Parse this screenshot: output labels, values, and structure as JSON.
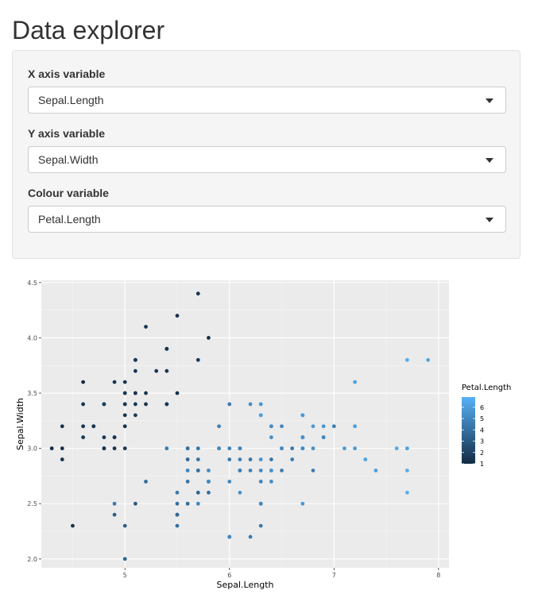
{
  "page": {
    "title": "Data explorer"
  },
  "controls": [
    {
      "label": "X axis variable",
      "value": "Sepal.Length"
    },
    {
      "label": "Y axis variable",
      "value": "Sepal.Width"
    },
    {
      "label": "Colour variable",
      "value": "Petal.Length"
    }
  ],
  "chart_data": {
    "type": "scatter",
    "title": "",
    "xlabel": "Sepal.Length",
    "ylabel": "Sepal.Width",
    "xlim": [
      4.2,
      8.1
    ],
    "ylim": [
      1.92,
      4.52
    ],
    "xticks": [
      5,
      6,
      7,
      8
    ],
    "xtick_labels": [
      "5",
      "6",
      "7",
      "8"
    ],
    "yticks": [
      2.0,
      2.5,
      3.0,
      3.5,
      4.0,
      4.5
    ],
    "ytick_labels": [
      "2.0",
      "2.5",
      "3.0",
      "3.5",
      "4.0",
      "4.5"
    ],
    "grid": true,
    "background": "#ebebeb",
    "legend": {
      "title": "Petal.Length",
      "placement": "right",
      "range": [
        1,
        6.9
      ],
      "ticks": [
        1,
        2,
        3,
        4,
        5,
        6
      ],
      "tick_labels": [
        "1",
        "2",
        "3",
        "4",
        "5",
        "6"
      ],
      "color_low": "#132B43",
      "color_high": "#56B1F7"
    },
    "points": [
      [
        5.1,
        3.5,
        1.4
      ],
      [
        4.9,
        3.0,
        1.4
      ],
      [
        4.7,
        3.2,
        1.3
      ],
      [
        4.6,
        3.1,
        1.5
      ],
      [
        5.0,
        3.6,
        1.4
      ],
      [
        5.4,
        3.9,
        1.7
      ],
      [
        4.6,
        3.4,
        1.4
      ],
      [
        5.0,
        3.4,
        1.5
      ],
      [
        4.4,
        2.9,
        1.4
      ],
      [
        4.9,
        3.1,
        1.5
      ],
      [
        5.4,
        3.7,
        1.5
      ],
      [
        4.8,
        3.4,
        1.6
      ],
      [
        4.8,
        3.0,
        1.4
      ],
      [
        4.3,
        3.0,
        1.1
      ],
      [
        5.8,
        4.0,
        1.2
      ],
      [
        5.7,
        4.4,
        1.5
      ],
      [
        5.4,
        3.9,
        1.3
      ],
      [
        5.1,
        3.5,
        1.4
      ],
      [
        5.7,
        3.8,
        1.7
      ],
      [
        5.1,
        3.8,
        1.5
      ],
      [
        5.4,
        3.4,
        1.7
      ],
      [
        5.1,
        3.7,
        1.5
      ],
      [
        4.6,
        3.6,
        1.0
      ],
      [
        5.1,
        3.3,
        1.7
      ],
      [
        4.8,
        3.4,
        1.9
      ],
      [
        5.0,
        3.0,
        1.6
      ],
      [
        5.0,
        3.4,
        1.6
      ],
      [
        5.2,
        3.5,
        1.5
      ],
      [
        5.2,
        3.4,
        1.4
      ],
      [
        4.7,
        3.2,
        1.6
      ],
      [
        4.8,
        3.1,
        1.6
      ],
      [
        5.4,
        3.4,
        1.5
      ],
      [
        5.2,
        4.1,
        1.5
      ],
      [
        5.5,
        4.2,
        1.4
      ],
      [
        4.9,
        3.1,
        1.5
      ],
      [
        5.0,
        3.2,
        1.2
      ],
      [
        5.5,
        3.5,
        1.3
      ],
      [
        4.9,
        3.6,
        1.4
      ],
      [
        4.4,
        3.0,
        1.3
      ],
      [
        5.1,
        3.4,
        1.5
      ],
      [
        5.0,
        3.5,
        1.3
      ],
      [
        4.5,
        2.3,
        1.3
      ],
      [
        4.4,
        3.2,
        1.3
      ],
      [
        5.0,
        3.5,
        1.6
      ],
      [
        5.1,
        3.8,
        1.9
      ],
      [
        4.8,
        3.0,
        1.4
      ],
      [
        5.1,
        3.8,
        1.6
      ],
      [
        4.6,
        3.2,
        1.4
      ],
      [
        5.3,
        3.7,
        1.5
      ],
      [
        5.0,
        3.3,
        1.4
      ],
      [
        7.0,
        3.2,
        4.7
      ],
      [
        6.4,
        3.2,
        4.5
      ],
      [
        6.9,
        3.1,
        4.9
      ],
      [
        5.5,
        2.3,
        4.0
      ],
      [
        6.5,
        2.8,
        4.6
      ],
      [
        5.7,
        2.8,
        4.5
      ],
      [
        6.3,
        3.3,
        4.7
      ],
      [
        4.9,
        2.4,
        3.3
      ],
      [
        6.6,
        2.9,
        4.6
      ],
      [
        5.2,
        2.7,
        3.9
      ],
      [
        5.0,
        2.0,
        3.5
      ],
      [
        5.9,
        3.0,
        4.2
      ],
      [
        6.0,
        2.2,
        4.0
      ],
      [
        6.1,
        2.9,
        4.7
      ],
      [
        5.6,
        2.9,
        3.6
      ],
      [
        6.7,
        3.1,
        4.4
      ],
      [
        5.6,
        3.0,
        4.5
      ],
      [
        5.8,
        2.7,
        4.1
      ],
      [
        6.2,
        2.2,
        4.5
      ],
      [
        5.6,
        2.5,
        3.9
      ],
      [
        5.9,
        3.2,
        4.8
      ],
      [
        6.1,
        2.8,
        4.0
      ],
      [
        6.3,
        2.5,
        4.9
      ],
      [
        6.1,
        2.8,
        4.7
      ],
      [
        6.4,
        2.9,
        4.3
      ],
      [
        6.6,
        3.0,
        4.4
      ],
      [
        6.8,
        2.8,
        4.8
      ],
      [
        6.7,
        3.0,
        5.0
      ],
      [
        6.0,
        2.9,
        4.5
      ],
      [
        5.7,
        2.6,
        3.5
      ],
      [
        5.5,
        2.4,
        3.8
      ],
      [
        5.5,
        2.4,
        3.7
      ],
      [
        5.8,
        2.7,
        3.9
      ],
      [
        6.0,
        2.7,
        5.1
      ],
      [
        5.4,
        3.0,
        4.5
      ],
      [
        6.0,
        3.4,
        4.5
      ],
      [
        6.7,
        3.1,
        4.7
      ],
      [
        6.3,
        2.3,
        4.4
      ],
      [
        5.6,
        3.0,
        4.1
      ],
      [
        5.5,
        2.5,
        4.0
      ],
      [
        5.5,
        2.6,
        4.4
      ],
      [
        6.1,
        3.0,
        4.6
      ],
      [
        5.8,
        2.6,
        4.0
      ],
      [
        5.0,
        2.3,
        3.3
      ],
      [
        5.6,
        2.7,
        4.2
      ],
      [
        5.7,
        3.0,
        4.2
      ],
      [
        5.7,
        2.9,
        4.2
      ],
      [
        6.2,
        2.9,
        4.3
      ],
      [
        5.1,
        2.5,
        3.0
      ],
      [
        5.7,
        2.8,
        4.1
      ],
      [
        6.3,
        3.3,
        6.0
      ],
      [
        5.8,
        2.7,
        5.1
      ],
      [
        7.1,
        3.0,
        5.9
      ],
      [
        6.3,
        2.9,
        5.6
      ],
      [
        6.5,
        3.0,
        5.8
      ],
      [
        7.6,
        3.0,
        6.6
      ],
      [
        4.9,
        2.5,
        4.5
      ],
      [
        7.3,
        2.9,
        6.3
      ],
      [
        6.7,
        2.5,
        5.8
      ],
      [
        7.2,
        3.6,
        6.1
      ],
      [
        6.5,
        3.2,
        5.1
      ],
      [
        6.4,
        2.7,
        5.3
      ],
      [
        6.8,
        3.0,
        5.5
      ],
      [
        5.7,
        2.5,
        5.0
      ],
      [
        5.8,
        2.8,
        5.1
      ],
      [
        6.4,
        3.2,
        5.3
      ],
      [
        6.5,
        3.0,
        5.5
      ],
      [
        7.7,
        3.8,
        6.7
      ],
      [
        7.7,
        2.6,
        6.9
      ],
      [
        6.0,
        2.2,
        5.0
      ],
      [
        6.9,
        3.2,
        5.7
      ],
      [
        5.6,
        2.8,
        4.9
      ],
      [
        7.7,
        2.8,
        6.7
      ],
      [
        6.3,
        2.7,
        4.9
      ],
      [
        6.7,
        3.3,
        5.7
      ],
      [
        7.2,
        3.2,
        6.0
      ],
      [
        6.2,
        2.8,
        4.8
      ],
      [
        6.1,
        3.0,
        4.9
      ],
      [
        6.4,
        2.8,
        5.6
      ],
      [
        7.2,
        3.0,
        5.8
      ],
      [
        7.4,
        2.8,
        6.1
      ],
      [
        7.9,
        3.8,
        6.4
      ],
      [
        6.4,
        2.8,
        5.6
      ],
      [
        6.3,
        2.8,
        5.1
      ],
      [
        6.1,
        2.6,
        5.6
      ],
      [
        7.7,
        3.0,
        6.1
      ],
      [
        6.3,
        3.4,
        5.6
      ],
      [
        6.4,
        3.1,
        5.5
      ],
      [
        6.0,
        3.0,
        4.8
      ],
      [
        6.9,
        3.1,
        5.4
      ],
      [
        6.7,
        3.1,
        5.6
      ],
      [
        6.9,
        3.1,
        5.1
      ],
      [
        5.8,
        2.7,
        5.1
      ],
      [
        6.8,
        3.2,
        5.9
      ],
      [
        6.7,
        3.3,
        5.7
      ],
      [
        6.7,
        3.0,
        5.2
      ],
      [
        6.3,
        2.5,
        5.0
      ],
      [
        6.5,
        3.0,
        5.2
      ],
      [
        6.2,
        3.4,
        5.4
      ],
      [
        5.9,
        3.0,
        5.1
      ]
    ]
  }
}
